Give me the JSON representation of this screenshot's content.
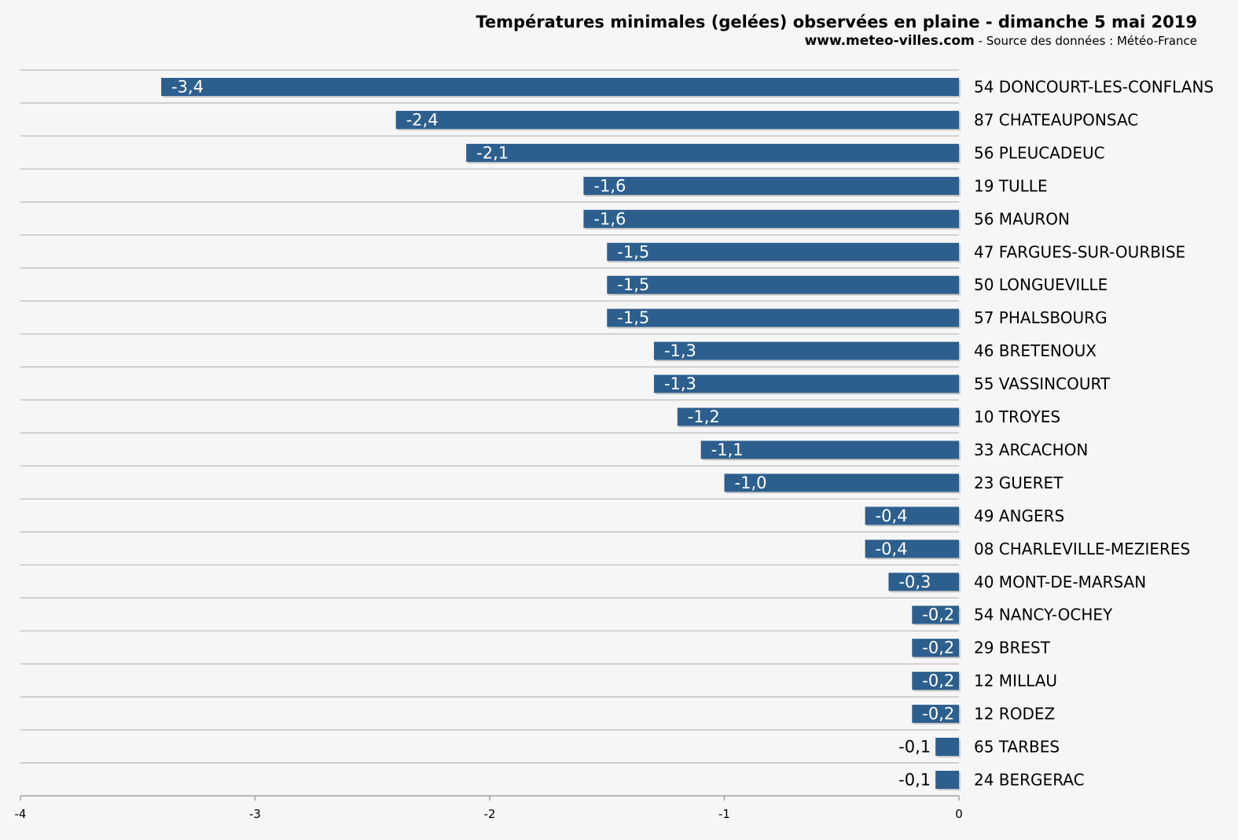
{
  "header": {
    "title": "Températures minimales (gelées) observées en plaine - dimanche 5 mai 2019",
    "site": "www.meteo-villes.com",
    "source": " - Source des données : Météo-France"
  },
  "colors": {
    "bar": "#2d5f8e",
    "grid": "#bdbdbd",
    "background": "#f6f6f6"
  },
  "chart_data": {
    "type": "bar",
    "orientation": "horizontal",
    "title": "Températures minimales (gelées) observées en plaine - dimanche 5 mai 2019",
    "xlim": [
      -4,
      0
    ],
    "xticks": [
      "-4",
      "-3",
      "-2",
      "-1",
      "0"
    ],
    "categories": [
      "54 DONCOURT-LES-CONFLANS",
      "87 CHATEAUPONSAC",
      "56 PLEUCADEUC",
      "19 TULLE",
      "56 MAURON",
      "47 FARGUES-SUR-OURBISE",
      "50 LONGUEVILLE",
      "57 PHALSBOURG",
      "46 BRETENOUX",
      "55 VASSINCOURT",
      "10 TROYES",
      "33 ARCACHON",
      "23 GUERET",
      "49 ANGERS",
      "08 CHARLEVILLE-MEZIERES",
      "40 MONT-DE-MARSAN",
      "54 NANCY-OCHEY",
      "29 BREST",
      "12 MILLAU",
      "12 RODEZ",
      "65 TARBES",
      "24 BERGERAC"
    ],
    "values": [
      -3.4,
      -2.4,
      -2.1,
      -1.6,
      -1.6,
      -1.5,
      -1.5,
      -1.5,
      -1.3,
      -1.3,
      -1.2,
      -1.1,
      -1.0,
      -0.4,
      -0.4,
      -0.3,
      -0.2,
      -0.2,
      -0.2,
      -0.2,
      -0.1,
      -0.1
    ],
    "value_labels": [
      "-3,4",
      "-2,4",
      "-2,1",
      "-1,6",
      "-1,6",
      "-1,5",
      "-1,5",
      "-1,5",
      "-1,3",
      "-1,3",
      "-1,2",
      "-1,1",
      "-1,0",
      "-0,4",
      "-0,4",
      "-0,3",
      "-0,2",
      "-0,2",
      "-0,2",
      "-0,2",
      "-0,1",
      "-0,1"
    ],
    "grid": true,
    "legend": "none"
  }
}
